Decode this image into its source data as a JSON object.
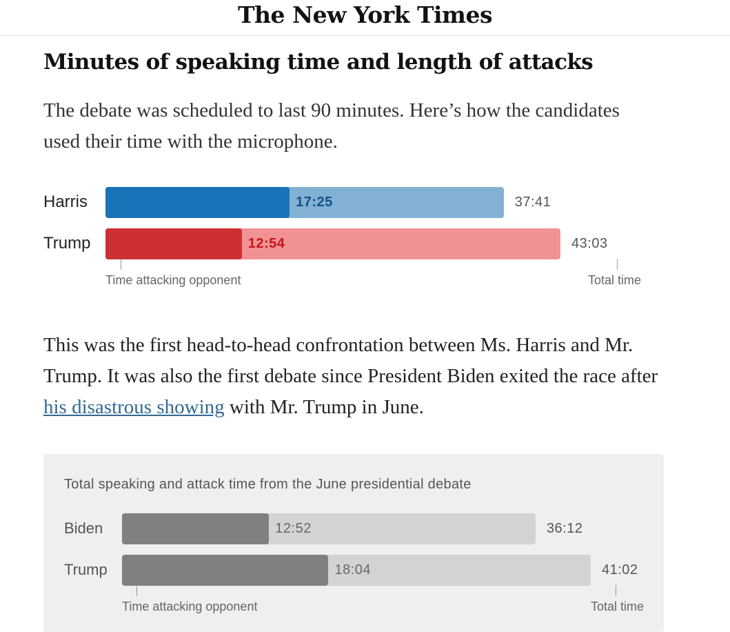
{
  "masthead": {
    "logo": "The New York Times"
  },
  "headline": "Minutes of speaking time and length of attacks",
  "dek": "The debate was scheduled to last 90 minutes. Here’s how the candidates used their time with the microphone.",
  "chart_data": [
    {
      "type": "bar",
      "categories": [
        "Harris",
        "Trump"
      ],
      "series": [
        {
          "name": "Time attacking opponent",
          "values": [
            17.42,
            12.9
          ],
          "labels": [
            "17:25",
            "12:54"
          ]
        },
        {
          "name": "Total time",
          "values": [
            37.68,
            43.05
          ],
          "labels": [
            "37:41",
            "43:03"
          ]
        }
      ],
      "xlim": [
        0,
        45.2
      ],
      "colors": {
        "Harris": {
          "attack": "#1873b8",
          "total": "#82b1d3",
          "text": "#15518a"
        },
        "Trump": {
          "attack": "#cc3033",
          "total": "#f09293",
          "text": "#c4161c"
        }
      },
      "annotations": {
        "attack": "Time attacking opponent",
        "total": "Total time"
      }
    },
    {
      "type": "bar",
      "title": "Total speaking and attack time from the June presidential debate",
      "categories": [
        "Biden",
        "Trump"
      ],
      "series": [
        {
          "name": "Time attacking opponent",
          "values": [
            12.87,
            18.07
          ],
          "labels": [
            "12:52",
            "18:04"
          ]
        },
        {
          "name": "Total time",
          "values": [
            36.2,
            41.03
          ],
          "labels": [
            "36:12",
            "41:02"
          ]
        }
      ],
      "xlim": [
        0,
        41.03
      ],
      "colors": {
        "attack": "#808080",
        "total": "#d3d3d3",
        "text": "#666666"
      },
      "annotations": {
        "attack": "Time attacking opponent",
        "total": "Total time"
      }
    }
  ],
  "body": {
    "before": "This was the first head-to-head confrontation between Ms. Harris and Mr. Trump. It was also the first debate since President Biden exited the race after ",
    "link": "his disastrous showing",
    "after": " with Mr. Trump in June."
  }
}
